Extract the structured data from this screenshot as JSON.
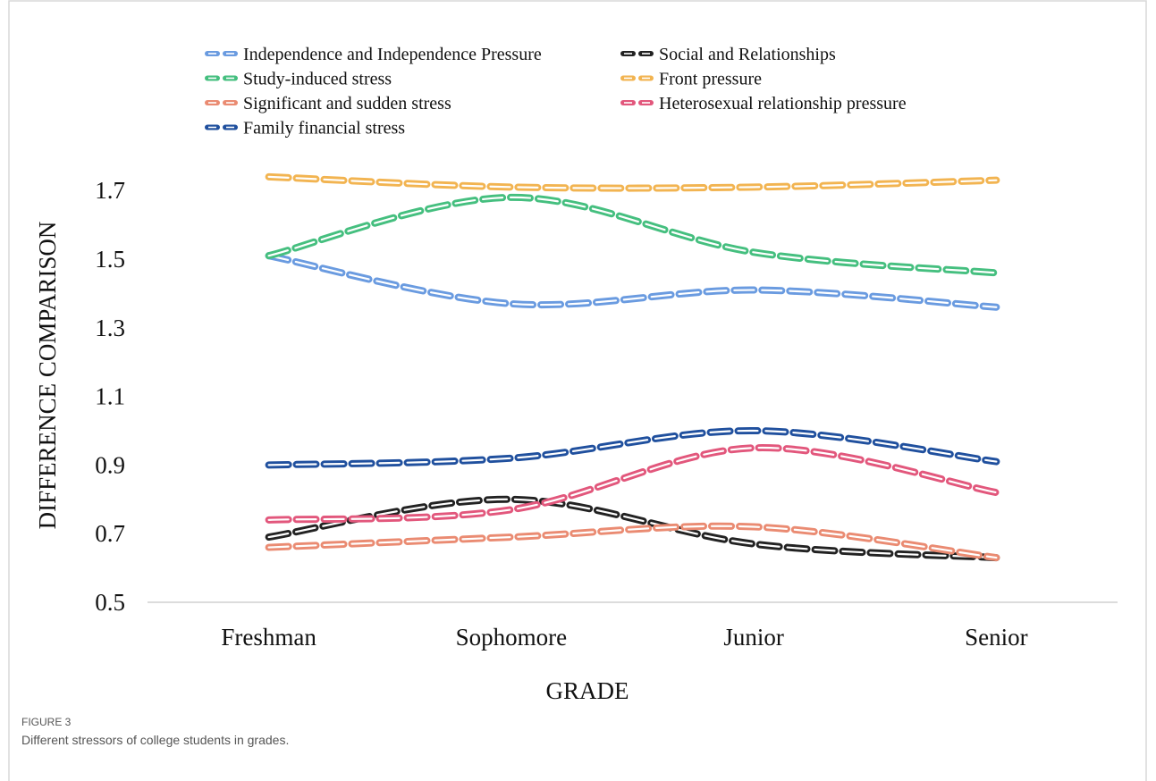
{
  "chart_data": {
    "type": "line",
    "y_label": "DIFFERENCE COMPARISON",
    "x_label": "GRADE",
    "categories": [
      "Freshman",
      "Sophomore",
      "Junior",
      "Senior"
    ],
    "series": [
      {
        "name": "Independence and Independence Pressure",
        "color": "#6a9be0",
        "values": [
          1.51,
          1.37,
          1.41,
          1.36
        ]
      },
      {
        "name": "Social and Relationships",
        "color": "#222222",
        "values": [
          0.69,
          0.8,
          0.67,
          0.63
        ]
      },
      {
        "name": "Study-induced stress",
        "color": "#45bf7f",
        "values": [
          1.51,
          1.68,
          1.52,
          1.46
        ]
      },
      {
        "name": "Front pressure",
        "color": "#f2b451",
        "values": [
          1.74,
          1.71,
          1.71,
          1.73
        ]
      },
      {
        "name": "Significant and sudden stress",
        "color": "#ea8b72",
        "values": [
          0.66,
          0.69,
          0.72,
          0.63
        ]
      },
      {
        "name": "Heterosexual relationship pressure",
        "color": "#e2577c",
        "values": [
          0.74,
          0.77,
          0.95,
          0.82
        ]
      },
      {
        "name": "Family financial stress",
        "color": "#20509e",
        "values": [
          0.9,
          0.92,
          1.0,
          0.91
        ]
      }
    ],
    "ylim": [
      0.5,
      1.8
    ],
    "yticks": [
      0.5,
      0.7,
      0.9,
      1.1,
      1.3,
      1.5,
      1.7
    ],
    "grid": false,
    "legend": "top"
  },
  "caption": {
    "label": "FIGURE 3",
    "text": "Different stressors of college students in grades."
  }
}
